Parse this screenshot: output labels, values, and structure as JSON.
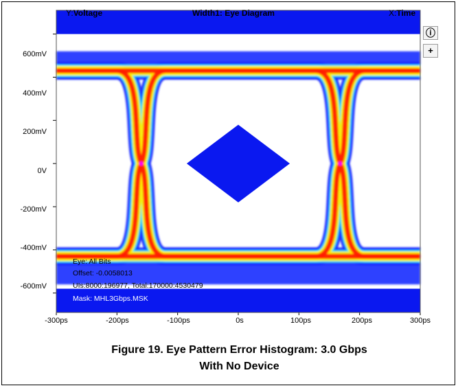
{
  "header": {
    "y_label_prefix": "Y:",
    "y_label": "Voltage",
    "title": "Width1: Eye Diagram",
    "x_label_prefix": "X:",
    "x_label": "Time"
  },
  "side_buttons": {
    "info_symbol": "ⓘ",
    "zoom_symbol": "+"
  },
  "info": {
    "eye": "Eye: All Bits",
    "offset": "Offset: -0.0058013",
    "uis": "UIs:8000:196977, Total:170000:4530479",
    "mask": "Mask: MHL3Gbps.MSK"
  },
  "caption": {
    "line1": "Figure 19. Eye Pattern Error Histogram: 3.0 Gbps",
    "line2": "With No Device"
  },
  "colors": {
    "mask_blue": "#0a18f0",
    "plot_bg": "#ffffff",
    "heat_low": "#1a2cff",
    "heat_mid": "#00e0ff",
    "heat_hi": "#ffee00",
    "heat_max": "#ff1a00",
    "crossing": "#ff00ff"
  },
  "chart_data": {
    "type": "heatmap",
    "title": "Width1: Eye Diagram",
    "xlabel": "X:Time",
    "ylabel": "Y:Voltage",
    "x_unit": "ps",
    "y_unit": "mV",
    "xlim": [
      -300,
      300
    ],
    "ylim": [
      -690,
      710
    ],
    "x_ticks": [
      -300,
      -200,
      -100,
      0,
      100,
      200,
      300
    ],
    "x_tick_labels": [
      "-300ps",
      "-200ps",
      "-100ps",
      "0s",
      "100ps",
      "200ps",
      "300ps"
    ],
    "y_ticks": [
      600,
      400,
      200,
      0,
      -200,
      -400,
      -600
    ],
    "y_tick_labels": [
      "600mV",
      "400mV",
      "200mV",
      "0V",
      "-200mV",
      "-400mV",
      "-600mV"
    ],
    "eye": {
      "high_level": 430,
      "low_level": -430,
      "outer_top": 520,
      "outer_bottom": -560,
      "crossings": [
        -160,
        168
      ],
      "crossing_level": 0
    },
    "mask": {
      "center_polygon": [
        [
          -85,
          0
        ],
        [
          0,
          180
        ],
        [
          85,
          0
        ],
        [
          0,
          -180
        ]
      ],
      "top_band": [
        600,
        710
      ],
      "bottom_band": [
        -690,
        -580
      ]
    }
  }
}
